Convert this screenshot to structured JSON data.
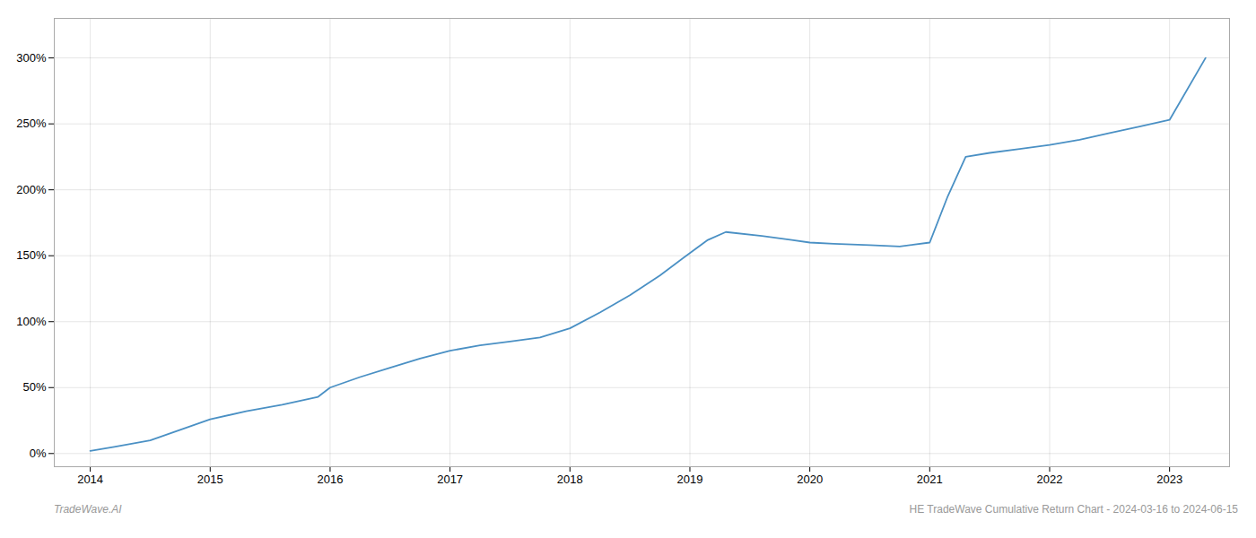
{
  "chart_data": {
    "type": "line",
    "x": [
      2014.0,
      2014.2,
      2014.5,
      2014.75,
      2015.0,
      2015.3,
      2015.6,
      2015.9,
      2016.0,
      2016.25,
      2016.5,
      2016.75,
      2017.0,
      2017.25,
      2017.5,
      2017.75,
      2018.0,
      2018.25,
      2018.5,
      2018.75,
      2019.0,
      2019.15,
      2019.3,
      2019.6,
      2019.85,
      2020.0,
      2020.2,
      2020.5,
      2020.75,
      2021.0,
      2021.15,
      2021.3,
      2021.5,
      2021.75,
      2022.0,
      2022.25,
      2022.5,
      2022.75,
      2023.0,
      2023.3
    ],
    "values": [
      2,
      5,
      10,
      18,
      26,
      32,
      37,
      43,
      50,
      58,
      65,
      72,
      78,
      82,
      85,
      88,
      95,
      107,
      120,
      135,
      152,
      162,
      168,
      165,
      162,
      160,
      159,
      158,
      157,
      160,
      195,
      225,
      228,
      231,
      234,
      238,
      243,
      248,
      253,
      300
    ],
    "color": "#4a90c4",
    "xlim": [
      2013.7,
      2023.5
    ],
    "xticks": [
      2014,
      2015,
      2016,
      2017,
      2018,
      2019,
      2020,
      2021,
      2022,
      2023
    ],
    "ylim": [
      -10,
      330
    ],
    "yticks": [
      {
        "value": 0,
        "label": "0%"
      },
      {
        "value": 50,
        "label": "50%"
      },
      {
        "value": 100,
        "label": "100%"
      },
      {
        "value": 150,
        "label": "150%"
      },
      {
        "value": 200,
        "label": "200%"
      },
      {
        "value": 250,
        "label": "250%"
      },
      {
        "value": 300,
        "label": "300%"
      }
    ],
    "grid": true,
    "annotations": [
      "TradeWave.AI",
      "HE TradeWave Cumulative Return Chart - 2024-03-16 to 2024-06-15"
    ]
  }
}
